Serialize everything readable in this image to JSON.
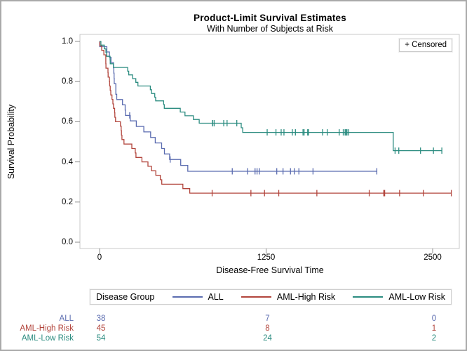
{
  "chart_data": {
    "type": "line",
    "subtype": "kaplan-meier-step",
    "title": "Product-Limit Survival Estimates",
    "subtitle": "With Number of Subjects at Risk",
    "xlabel": "Disease-Free Survival Time",
    "ylabel": "Survival Probability",
    "censored_label": "+ Censored",
    "legend_title": "Disease Group",
    "legend_position": "bottom",
    "grid": false,
    "x_ticks": [
      0,
      1250,
      2500
    ],
    "y_ticks": [
      1.0,
      0.8,
      0.6,
      0.4,
      0.2,
      0.0
    ],
    "xlim": [
      -150,
      2700
    ],
    "ylim": [
      0,
      1.0
    ],
    "colors": {
      "frame": "#c9c9c9",
      "tick": "#8c8c8c",
      "text": "#000000"
    },
    "series": [
      {
        "name": "ALL",
        "color": "#5b6cb0",
        "steps": [
          [
            0,
            1
          ],
          [
            1,
            0.9737
          ],
          [
            55,
            0.9474
          ],
          [
            74,
            0.9211
          ],
          [
            86,
            0.8947
          ],
          [
            104,
            0.8684
          ],
          [
            107,
            0.8421
          ],
          [
            109,
            0.8158
          ],
          [
            110,
            0.7895
          ],
          [
            122,
            0.7368
          ],
          [
            129,
            0.7105
          ],
          [
            172,
            0.6842
          ],
          [
            192,
            0.6579
          ],
          [
            194,
            0.6316
          ],
          [
            230,
            0.6041
          ],
          [
            276,
            0.5767
          ],
          [
            332,
            0.5492
          ],
          [
            383,
            0.5217
          ],
          [
            418,
            0.4943
          ],
          [
            466,
            0.4668
          ],
          [
            487,
            0.4394
          ],
          [
            526,
            0.4119
          ],
          [
            609,
            0.3825
          ],
          [
            662,
            0.3531
          ],
          [
            2081,
            0.3531
          ]
        ],
        "censors": [
          [
            226,
            0.6316
          ],
          [
            530,
            0.4119
          ],
          [
            996,
            0.3531
          ],
          [
            1111,
            0.3531
          ],
          [
            1167,
            0.3531
          ],
          [
            1182,
            0.3531
          ],
          [
            1199,
            0.3531
          ],
          [
            1330,
            0.3531
          ],
          [
            1377,
            0.3531
          ],
          [
            1433,
            0.3531
          ],
          [
            1462,
            0.3531
          ],
          [
            1496,
            0.3531
          ],
          [
            1602,
            0.3531
          ],
          [
            2081,
            0.3531
          ]
        ]
      },
      {
        "name": "AML-High Risk",
        "color": "#b2453c",
        "steps": [
          [
            0,
            1
          ],
          [
            2,
            0.9778
          ],
          [
            16,
            0.9556
          ],
          [
            32,
            0.9333
          ],
          [
            47,
            0.8889
          ],
          [
            48,
            0.8667
          ],
          [
            63,
            0.8444
          ],
          [
            64,
            0.8222
          ],
          [
            74,
            0.8
          ],
          [
            76,
            0.7778
          ],
          [
            80,
            0.7556
          ],
          [
            84,
            0.7333
          ],
          [
            93,
            0.7111
          ],
          [
            100,
            0.6889
          ],
          [
            105,
            0.6667
          ],
          [
            113,
            0.6444
          ],
          [
            115,
            0.6222
          ],
          [
            120,
            0.6
          ],
          [
            157,
            0.5778
          ],
          [
            162,
            0.5556
          ],
          [
            164,
            0.5333
          ],
          [
            168,
            0.5111
          ],
          [
            183,
            0.4889
          ],
          [
            242,
            0.4667
          ],
          [
            268,
            0.4444
          ],
          [
            273,
            0.4222
          ],
          [
            318,
            0.4
          ],
          [
            363,
            0.3778
          ],
          [
            390,
            0.3556
          ],
          [
            422,
            0.3333
          ],
          [
            456,
            0.3111
          ],
          [
            467,
            0.2889
          ],
          [
            625,
            0.2667
          ],
          [
            677,
            0.2444
          ],
          [
            2640,
            0.2444
          ]
        ],
        "censors": [
          [
            845,
            0.2444
          ],
          [
            1136,
            0.2444
          ],
          [
            1238,
            0.2444
          ],
          [
            1345,
            0.2444
          ],
          [
            1631,
            0.2444
          ],
          [
            2024,
            0.2444
          ],
          [
            2133,
            0.2444
          ],
          [
            2140,
            0.2444
          ],
          [
            2252,
            0.2444
          ],
          [
            2430,
            0.2444
          ],
          [
            2640,
            0.2444
          ]
        ]
      },
      {
        "name": "AML-Low Risk",
        "color": "#2b8c80",
        "steps": [
          [
            0,
            1
          ],
          [
            10,
            0.9815
          ],
          [
            35,
            0.963
          ],
          [
            48,
            0.9444
          ],
          [
            53,
            0.9259
          ],
          [
            79,
            0.9074
          ],
          [
            80,
            0.8889
          ],
          [
            105,
            0.8704
          ],
          [
            211,
            0.8519
          ],
          [
            219,
            0.8333
          ],
          [
            248,
            0.8148
          ],
          [
            272,
            0.7963
          ],
          [
            288,
            0.7778
          ],
          [
            381,
            0.7593
          ],
          [
            390,
            0.7407
          ],
          [
            414,
            0.7222
          ],
          [
            421,
            0.7037
          ],
          [
            481,
            0.6852
          ],
          [
            486,
            0.6667
          ],
          [
            606,
            0.6481
          ],
          [
            641,
            0.6296
          ],
          [
            704,
            0.6111
          ],
          [
            748,
            0.5926
          ],
          [
            1063,
            0.5698
          ],
          [
            1074,
            0.547
          ],
          [
            2204,
            0.4558
          ],
          [
            2569,
            0.4558
          ]
        ],
        "censors": [
          [
            847,
            0.5926
          ],
          [
            848,
            0.5926
          ],
          [
            860,
            0.5926
          ],
          [
            932,
            0.5926
          ],
          [
            957,
            0.5926
          ],
          [
            1030,
            0.5926
          ],
          [
            1258,
            0.547
          ],
          [
            1324,
            0.547
          ],
          [
            1363,
            0.547
          ],
          [
            1384,
            0.547
          ],
          [
            1447,
            0.547
          ],
          [
            1470,
            0.547
          ],
          [
            1527,
            0.547
          ],
          [
            1535,
            0.547
          ],
          [
            1562,
            0.547
          ],
          [
            1568,
            0.547
          ],
          [
            1674,
            0.547
          ],
          [
            1709,
            0.547
          ],
          [
            1799,
            0.547
          ],
          [
            1829,
            0.547
          ],
          [
            1843,
            0.547
          ],
          [
            1850,
            0.547
          ],
          [
            1857,
            0.547
          ],
          [
            1870,
            0.547
          ],
          [
            2218,
            0.4558
          ],
          [
            2246,
            0.4558
          ],
          [
            2409,
            0.4558
          ],
          [
            2506,
            0.4558
          ],
          [
            2569,
            0.4558
          ]
        ]
      }
    ],
    "at_risk": {
      "times": [
        0,
        1250,
        2500
      ],
      "rows": [
        {
          "label": "ALL",
          "color": "#5b6cb0",
          "counts": [
            38,
            7,
            0
          ]
        },
        {
          "label": "AML-High Risk",
          "color": "#b2453c",
          "counts": [
            45,
            8,
            1
          ]
        },
        {
          "label": "AML-Low Risk",
          "color": "#2b8c80",
          "counts": [
            54,
            24,
            2
          ]
        }
      ]
    }
  }
}
